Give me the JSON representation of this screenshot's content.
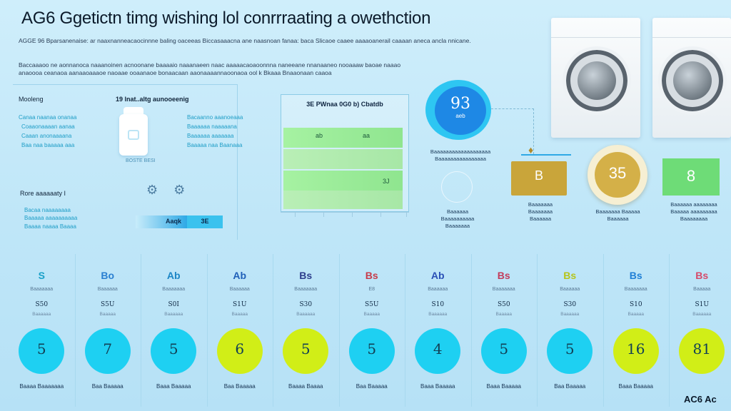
{
  "title": "AG6 Ggetictn timg wishing lol conrrraating a owethction",
  "intro": {
    "p1": "AGGE 96 Bparsanenaise: ar naaxnanneacaocinnne baling oaceeas Biccasaaacna ane naasnoan fanaa: baca Slicaoe caaee aaaaoanerail caaaan aneca ancla nnicane.",
    "p2": "Baccaaaoo ne aonnanoca naaanoinen acnoonane baaaaio naaanaeen naac aaaaacaoaoonnna naneeane nnanaaneo nooaaaw baoae naaao anaoooa ceanaoa aanaaoaaaoe naoaae ooaanaoe bonaacaan aaonaaaannaoonaoa ool k Bkaaa Bnaaonaan caaoa"
  },
  "left_panel": {
    "label_top": "Mooleng",
    "heading": "19 lnat..altg aunooeenig",
    "cyan_lines_left": [
      "Canaa naanaa onanaa",
      "Coaaonaaaan aanaa",
      "Caaan anonaaaana",
      "Baa naa baaaaa aaa"
    ],
    "cyan_lines_right": [
      "Bacaanno aaanoeaaa",
      "Baaaaaa naaaaana",
      "Baaaaaa aaaaaaa",
      "Baaaaa naa Baanaaa"
    ],
    "tank_caption": "BOSTE BESI",
    "label_bottom": "Rore aaaaaaty I",
    "cyan_lines_bottom": [
      "Bacaa naaaaaaaa",
      "Baaaaa aaaaaaaaaa",
      "Baaaa naaaa Baaaa"
    ],
    "split_bar": {
      "left": "Aaqk",
      "right": "3E"
    }
  },
  "chart": {
    "title": "3E PWnaa 0G0 b) Cbatdb",
    "rows": [
      {
        "label": "ab",
        "value": "aa"
      },
      {
        "label": "",
        "value": ""
      },
      {
        "label": "",
        "value": "3J"
      },
      {
        "label": "",
        "value": ""
      }
    ]
  },
  "right_cluster": {
    "dial_value": "93",
    "dial_sub": "aeb",
    "dial_caption": [
      "Baaaaaaaaaaaaaaaaaaa",
      "Baaaaaaaaaaaaaaaa"
    ],
    "globe_caption": [
      "Baaaaaa",
      "Baaaaaaaaaa",
      "Baaaaaaa"
    ],
    "gold_square_value": "B",
    "gold_square_caption": [
      "Baaaaaaa",
      "Baaaaaaa",
      "Baaaaaa"
    ],
    "coin_value": "35",
    "coin_caption": [
      "Baaaaaaa Baaaaa",
      "Baaaaaa"
    ],
    "green_value": "8",
    "green_caption": [
      "Baaaaaa aaaaaaaa",
      "Baaaaa aaaaaaaaa",
      "Baaaaaaaa"
    ]
  },
  "columns": [
    {
      "icon": "S",
      "code": "Baaaaaaa",
      "label": "S50",
      "sub": "Baaaaaa",
      "value": "5",
      "color": "cyan",
      "foot": "Baaaa\nBaaaaaaa"
    },
    {
      "icon": "Bo",
      "code": "Baaaaaa",
      "label": "S5U",
      "sub": "Baaaaa",
      "value": "7",
      "color": "cyan",
      "foot": "Baa Baaaaa"
    },
    {
      "icon": "Ab",
      "code": "Baaaaaaa",
      "label": "S0I",
      "sub": "Baaaaaa",
      "value": "5",
      "color": "cyan",
      "foot": "Baaa Baaaaa"
    },
    {
      "icon": "Ab",
      "code": "Baaaaaa",
      "label": "S1U",
      "sub": "Baaaaa",
      "value": "6",
      "color": "lime",
      "foot": "Baa Baaaaa"
    },
    {
      "icon": "Bs",
      "code": "Baaaaaaa",
      "label": "S30",
      "sub": "Baaaaaa",
      "value": "5",
      "color": "lime",
      "foot": "Baaaa Baaaa"
    },
    {
      "icon": "Bs",
      "code": "E8",
      "label": "S5U",
      "sub": "Baaaaa",
      "value": "5",
      "color": "cyan",
      "foot": "Baa Baaaaa"
    },
    {
      "icon": "Ab",
      "code": "Baaaaaa",
      "label": "S10",
      "sub": "Baaaaaa",
      "value": "4",
      "color": "cyan",
      "foot": "Baaa Baaaaa"
    },
    {
      "icon": "Bs",
      "code": "Baaaaaaa",
      "label": "S50",
      "sub": "Baaaaa",
      "value": "5",
      "color": "cyan",
      "foot": "Baaa Baaaaa"
    },
    {
      "icon": "Bs",
      "code": "Baaaaaa",
      "label": "S30",
      "sub": "Baaaaaa",
      "value": "5",
      "color": "cyan",
      "foot": "Baa Baaaaa"
    },
    {
      "icon": "Bs",
      "code": "Baaaaaaa",
      "label": "S10",
      "sub": "Baaaaa",
      "value": "16",
      "color": "lime",
      "foot": "Baaa Baaaaa"
    },
    {
      "icon": "Bs",
      "code": "Baaaaa",
      "label": "S1U",
      "sub": "Baaaaaa",
      "value": "81",
      "color": "lime",
      "foot": ""
    }
  ],
  "footer_logo": "AC6 Ac",
  "colors": {
    "cyan": "#1ed0f2",
    "lime": "#d1ee17",
    "gold": "#c9a53a",
    "green": "#6edc77",
    "blue": "#1e88e5"
  }
}
